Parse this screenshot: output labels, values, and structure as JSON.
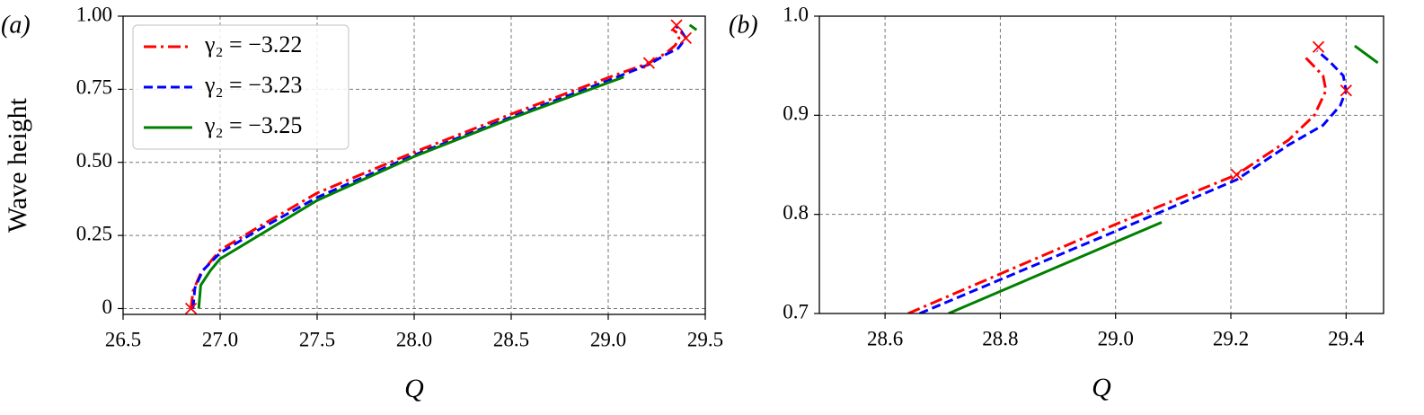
{
  "chart_data": [
    {
      "type": "line",
      "panel_label": "(a)",
      "xlabel": "Q",
      "ylabel": "Wave height",
      "xlim": [
        26.5,
        29.5
      ],
      "ylim": [
        -0.02,
        1.0
      ],
      "xticks": [
        26.5,
        {
          "value": 27.0,
          "label": "27.0"
        },
        27.5,
        {
          "value": 28.0,
          "label": "28.0"
        },
        28.5,
        {
          "value": 29.0,
          "label": "29.0"
        },
        29.5
      ],
      "yticks": [
        0,
        0.25,
        {
          "value": 0.5,
          "label": "0.50"
        },
        0.75,
        {
          "value": 1.0,
          "label": "1.00"
        }
      ],
      "grid": true,
      "legend": "upper left",
      "series": [
        {
          "name": "γ₂ = −3.22",
          "color": "#ff0000",
          "dash": "dashdot",
          "x": [
            26.85,
            26.86,
            26.9,
            27.0,
            27.2,
            27.5,
            28.0,
            28.5,
            29.0,
            29.21,
            29.3,
            29.345,
            29.365,
            29.36,
            29.33
          ],
          "values": [
            0,
            0.06,
            0.12,
            0.2,
            0.28,
            0.395,
            0.535,
            0.665,
            0.79,
            0.84,
            0.875,
            0.9,
            0.925,
            0.94,
            0.955
          ]
        },
        {
          "name": "γ₂ = −3.23",
          "color": "#0000ff",
          "dash": "dashed",
          "x": [
            26.86,
            26.87,
            26.91,
            27.0,
            27.2,
            27.5,
            28.0,
            28.5,
            29.0,
            29.21,
            29.3,
            29.36,
            29.4,
            29.37,
            29.35
          ],
          "values": [
            0,
            0.07,
            0.13,
            0.19,
            0.27,
            0.38,
            0.525,
            0.655,
            0.78,
            0.835,
            0.87,
            0.89,
            0.925,
            0.955,
            0.965
          ]
        },
        {
          "name": "γ₂ = −3.25",
          "color": "#008000",
          "dash": "solid",
          "x": [
            26.89,
            26.9,
            26.95,
            27.0,
            27.2,
            27.5,
            28.0,
            28.5,
            29.08,
            null,
            29.42,
            29.455
          ],
          "values": [
            0,
            0.08,
            0.13,
            0.17,
            0.25,
            0.37,
            0.52,
            0.65,
            0.792,
            null,
            0.97,
            0.953
          ]
        }
      ],
      "markers": {
        "color": "#ff0000",
        "x": [
          26.85,
          29.21,
          29.352,
          29.4
        ],
        "values": [
          0,
          0.84,
          0.969,
          0.925
        ]
      }
    },
    {
      "type": "line",
      "panel_label": "(b)",
      "xlabel": "Q",
      "xlim": [
        28.486,
        29.465
      ],
      "ylim": [
        0.7,
        1.0
      ],
      "xticks": [
        28.6,
        28.8,
        {
          "value": 29.0,
          "label": "29.0"
        },
        29.2,
        29.4
      ],
      "yticks": [
        0.7,
        0.8,
        0.9,
        {
          "value": 1.0,
          "label": "1.0"
        }
      ],
      "grid": true,
      "series": [
        {
          "color": "#ff0000",
          "dash": "dashdot",
          "x": [
            28.64,
            29.0,
            29.21,
            29.3,
            29.345,
            29.365,
            29.36,
            29.33
          ],
          "values": [
            0.7,
            0.79,
            0.84,
            0.875,
            0.9,
            0.925,
            0.94,
            0.958
          ]
        },
        {
          "color": "#0000ff",
          "dash": "dashed",
          "x": [
            28.66,
            29.0,
            29.21,
            29.3,
            29.36,
            29.39,
            29.4,
            29.395,
            29.37,
            29.35
          ],
          "values": [
            0.7,
            0.783,
            0.835,
            0.87,
            0.89,
            0.91,
            0.925,
            0.94,
            0.955,
            0.965
          ]
        },
        {
          "color": "#008000",
          "dash": "solid",
          "x": [
            28.71,
            29.08,
            null,
            29.415,
            29.455
          ],
          "values": [
            0.7,
            0.792,
            null,
            0.97,
            0.953
          ]
        }
      ],
      "markers": {
        "color": "#ff0000",
        "x": [
          29.21,
          29.352,
          29.4
        ],
        "values": [
          0.84,
          0.969,
          0.925
        ]
      }
    }
  ]
}
